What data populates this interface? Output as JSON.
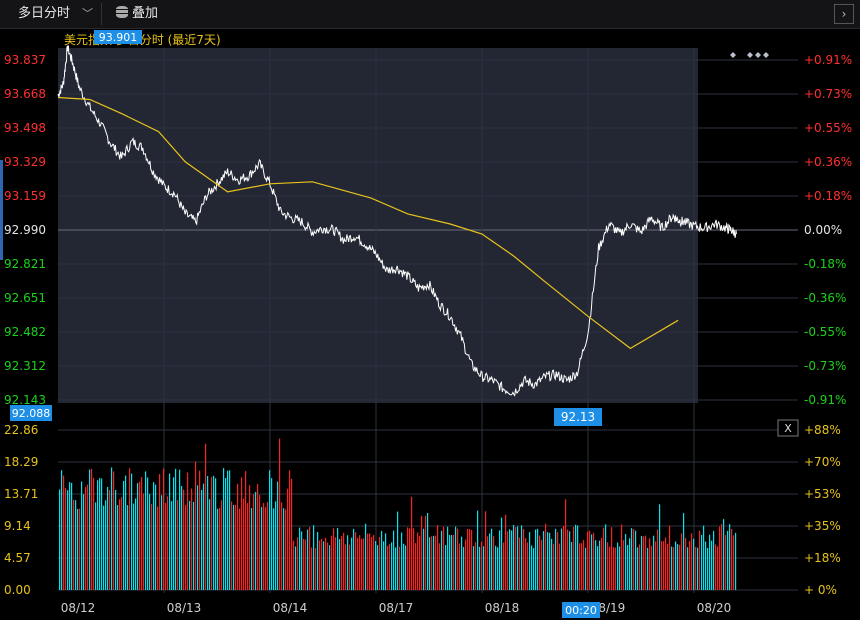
{
  "toolbar": {
    "period_label": "多日分时",
    "overlay_label": "叠加",
    "next_label": "›"
  },
  "title": "美元指数 多日分时 (最近7天)",
  "markers": {
    "high_label": "93.901",
    "low_label": "92.13",
    "cursor_price": "92.088",
    "cursor_time": "00:20"
  },
  "close_volume_button": "X",
  "colors": {
    "price": "#ffffff",
    "avg": "#e8c21c",
    "up": "#ff2020",
    "down": "#00e5f0",
    "tag_bg": "#1e8fe6",
    "plot_bg": "#232734",
    "up_text": "#ff3030",
    "down_text": "#19d219",
    "vol_text": "#e8c21c"
  },
  "chart_data": {
    "type": "line",
    "days": [
      "08/12",
      "08/13",
      "08/14",
      "08/17",
      "08/18",
      "08/19",
      "08/20"
    ],
    "reference": 92.99,
    "price_ticks": [
      "93.837",
      "93.668",
      "93.498",
      "93.329",
      "93.159",
      "92.990",
      "92.821",
      "92.651",
      "92.482",
      "92.312",
      "92.143"
    ],
    "pct_ticks": [
      "+0.91%",
      "+0.73%",
      "+0.55%",
      "+0.36%",
      "+0.18%",
      "0.00%",
      "-0.18%",
      "-0.36%",
      "-0.55%",
      "-0.73%",
      "-0.91%"
    ],
    "volume_ticks": [
      "22.86",
      "18.29",
      "13.71",
      "9.14",
      "4.57",
      "0.00"
    ],
    "volume_pct_ticks": [
      "+88%",
      "+70%",
      "+53%",
      "+35%",
      "+18%",
      "+ 0%"
    ],
    "ylim": [
      92.143,
      93.837
    ],
    "series": [
      {
        "x": [
          0,
          0.05,
          0.09,
          0.14,
          0.2,
          0.3,
          0.4,
          0.5,
          0.6,
          0.7,
          0.8,
          0.9,
          1.0,
          1.1,
          1.2,
          1.3,
          1.4,
          1.5,
          1.6,
          1.7,
          1.8,
          1.9,
          2.0,
          2.1,
          2.2,
          2.3,
          2.4,
          2.5,
          2.6,
          2.7,
          2.8,
          2.9,
          3.0,
          3.1,
          3.2,
          3.3,
          3.4,
          3.5,
          3.6,
          3.7,
          3.8,
          3.9,
          4.0,
          4.1,
          4.2,
          4.3,
          4.4,
          4.5,
          4.6,
          4.7,
          4.8,
          4.9,
          5.0,
          5.1,
          5.2,
          5.3,
          5.4,
          5.5,
          5.6,
          5.7,
          5.8,
          5.85,
          5.9,
          6.0,
          6.1,
          6.2,
          6.3,
          6.35,
          6.4
        ],
        "values": [
          93.66,
          93.72,
          93.9,
          93.82,
          93.7,
          93.6,
          93.52,
          93.42,
          93.35,
          93.43,
          93.4,
          93.28,
          93.21,
          93.17,
          93.07,
          93.03,
          93.16,
          93.22,
          93.28,
          93.24,
          93.26,
          93.32,
          93.22,
          93.08,
          93.05,
          93.03,
          92.98,
          93.0,
          92.99,
          92.94,
          92.96,
          92.92,
          92.87,
          92.79,
          92.8,
          92.76,
          92.7,
          92.72,
          92.62,
          92.56,
          92.46,
          92.32,
          92.26,
          92.24,
          92.2,
          92.18,
          92.24,
          92.22,
          92.26,
          92.27,
          92.24,
          92.28,
          92.48,
          92.9,
          93.02,
          92.97,
          93.02,
          92.98,
          93.05,
          93.0,
          93.06,
          93.04,
          93.03,
          93.01,
          93.0,
          93.02,
          93.0,
          92.99,
          92.97
        ]
      },
      {
        "x": [
          0,
          0.3,
          0.6,
          0.95,
          1.2,
          1.6,
          2.0,
          2.4,
          2.95,
          3.3,
          3.7,
          4.0,
          4.3,
          4.6,
          5.0,
          5.4,
          5.85
        ],
        "values": [
          93.65,
          93.64,
          93.57,
          93.48,
          93.33,
          93.18,
          93.22,
          93.23,
          93.15,
          93.07,
          93.02,
          92.97,
          92.86,
          92.73,
          92.56,
          92.4,
          92.54
        ]
      }
    ]
  }
}
